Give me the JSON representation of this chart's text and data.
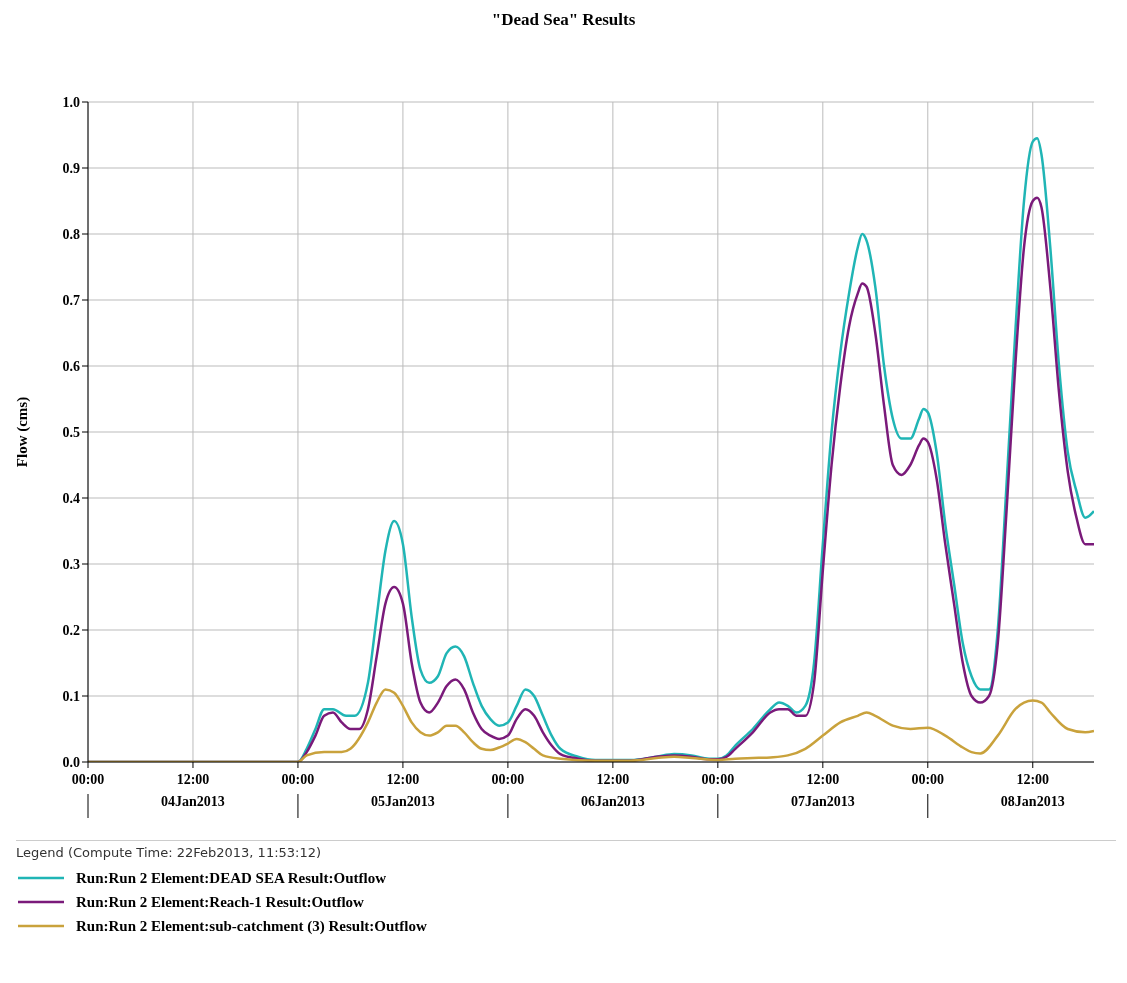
{
  "chart_data": {
    "type": "line",
    "title": "\"Dead Sea\" Results",
    "ylabel": "Flow (cms)",
    "legend_title": "Legend (Compute Time: 22Feb2013, 11:53:12)",
    "legend": "bottom",
    "grid": true,
    "marker": "none",
    "line_style": "solid",
    "xlim": [
      "2013-01-04T00:00",
      "2013-01-08T19:00"
    ],
    "xticks": [
      {
        "value": "2013-01-04T00:00",
        "label": "00:00"
      },
      {
        "value": "2013-01-04T12:00",
        "label": "12:00\n04Jan2013"
      },
      {
        "value": "2013-01-05T00:00",
        "label": "00:00"
      },
      {
        "value": "2013-01-05T12:00",
        "label": "12:00\n05Jan2013"
      },
      {
        "value": "2013-01-06T00:00",
        "label": "00:00"
      },
      {
        "value": "2013-01-06T12:00",
        "label": "12:00\n06Jan2013"
      },
      {
        "value": "2013-01-07T00:00",
        "label": "00:00"
      },
      {
        "value": "2013-01-07T12:00",
        "label": "12:00\n07Jan2013"
      },
      {
        "value": "2013-01-08T00:00",
        "label": "00:00"
      },
      {
        "value": "2013-01-08T12:00",
        "label": "12:00\n08Jan2013"
      }
    ],
    "ylim": [
      0,
      1
    ],
    "yticks": [
      {
        "value": 0,
        "label": "0.0"
      },
      {
        "value": 0.1,
        "label": "0.1"
      },
      {
        "value": 0.2,
        "label": "0.2"
      },
      {
        "value": 0.3,
        "label": "0.3"
      },
      {
        "value": 0.4,
        "label": "0.4"
      },
      {
        "value": 0.5,
        "label": "0.5"
      },
      {
        "value": 0.6,
        "label": "0.6"
      },
      {
        "value": 0.7,
        "label": "0.7"
      },
      {
        "value": 0.8,
        "label": "0.8"
      },
      {
        "value": 0.9,
        "label": "0.9"
      },
      {
        "value": 1,
        "label": "1.0"
      }
    ],
    "series": [
      {
        "name": "Run:Run 2 Element:DEAD SEA Result:Outflow",
        "color": "#20b5b5",
        "x": [
          "2013-01-04T00:00",
          "2013-01-05T00:00",
          "2013-01-05T01:00",
          "2013-01-05T02:00",
          "2013-01-05T03:00",
          "2013-01-05T04:00",
          "2013-01-05T05:30",
          "2013-01-05T06:30",
          "2013-01-05T08:00",
          "2013-01-05T09:00",
          "2013-01-05T10:00",
          "2013-01-05T11:00",
          "2013-01-05T12:00",
          "2013-01-05T13:00",
          "2013-01-05T14:00",
          "2013-01-05T15:00",
          "2013-01-05T16:00",
          "2013-01-05T17:00",
          "2013-01-05T18:00",
          "2013-01-05T19:00",
          "2013-01-05T20:00",
          "2013-01-05T21:00",
          "2013-01-05T22:00",
          "2013-01-05T23:00",
          "2013-01-06T00:00",
          "2013-01-06T01:00",
          "2013-01-06T02:00",
          "2013-01-06T03:00",
          "2013-01-06T04:00",
          "2013-01-06T05:00",
          "2013-01-06T06:00",
          "2013-01-06T08:00",
          "2013-01-06T10:00",
          "2013-01-06T14:00",
          "2013-01-06T17:00",
          "2013-01-06T19:00",
          "2013-01-06T21:00",
          "2013-01-06T23:00",
          "2013-01-07T00:00",
          "2013-01-07T01:00",
          "2013-01-07T02:00",
          "2013-01-07T04:00",
          "2013-01-07T06:00",
          "2013-01-07T07:00",
          "2013-01-07T08:00",
          "2013-01-07T09:00",
          "2013-01-07T10:00",
          "2013-01-07T11:00",
          "2013-01-07T12:00",
          "2013-01-07T13:00",
          "2013-01-07T14:00",
          "2013-01-07T15:00",
          "2013-01-07T16:00",
          "2013-01-07T16:30",
          "2013-01-07T17:00",
          "2013-01-07T18:00",
          "2013-01-07T19:00",
          "2013-01-07T20:00",
          "2013-01-07T21:00",
          "2013-01-07T22:00",
          "2013-01-07T23:00",
          "2013-01-07T23:30",
          "2013-01-08T00:00",
          "2013-01-08T01:00",
          "2013-01-08T02:00",
          "2013-01-08T03:00",
          "2013-01-08T04:00",
          "2013-01-08T05:00",
          "2013-01-08T06:00",
          "2013-01-08T07:00",
          "2013-01-08T08:00",
          "2013-01-08T09:00",
          "2013-01-08T10:00",
          "2013-01-08T11:00",
          "2013-01-08T12:00",
          "2013-01-08T12:30",
          "2013-01-08T13:00",
          "2013-01-08T14:00",
          "2013-01-08T15:00",
          "2013-01-08T16:00",
          "2013-01-08T17:00",
          "2013-01-08T18:00",
          "2013-01-08T19:00"
        ],
        "values": [
          0,
          0,
          0.02,
          0.05,
          0.08,
          0.08,
          0.07,
          0.07,
          0.12,
          0.22,
          0.32,
          0.365,
          0.33,
          0.22,
          0.14,
          0.12,
          0.13,
          0.165,
          0.175,
          0.16,
          0.12,
          0.085,
          0.065,
          0.055,
          0.06,
          0.085,
          0.11,
          0.1,
          0.07,
          0.04,
          0.02,
          0.008,
          0.003,
          0.003,
          0.008,
          0.012,
          0.01,
          0.005,
          0.005,
          0.01,
          0.025,
          0.05,
          0.08,
          0.09,
          0.085,
          0.075,
          0.085,
          0.15,
          0.33,
          0.5,
          0.62,
          0.71,
          0.78,
          0.8,
          0.79,
          0.72,
          0.6,
          0.52,
          0.49,
          0.49,
          0.52,
          0.535,
          0.53,
          0.47,
          0.36,
          0.27,
          0.18,
          0.13,
          0.11,
          0.11,
          0.2,
          0.42,
          0.65,
          0.85,
          0.94,
          0.945,
          0.92,
          0.78,
          0.6,
          0.47,
          0.41,
          0.37,
          0.38
        ]
      },
      {
        "name": "Run:Run 2 Element:Reach-1 Result:Outflow",
        "color": "#7a1a7a",
        "x": [
          "2013-01-04T00:00",
          "2013-01-05T00:00",
          "2013-01-05T01:00",
          "2013-01-05T02:00",
          "2013-01-05T03:00",
          "2013-01-05T04:00",
          "2013-01-05T05:00",
          "2013-01-05T06:00",
          "2013-01-05T07:00",
          "2013-01-05T08:00",
          "2013-01-05T09:00",
          "2013-01-05T10:00",
          "2013-01-05T11:00",
          "2013-01-05T12:00",
          "2013-01-05T13:00",
          "2013-01-05T14:00",
          "2013-01-05T15:00",
          "2013-01-05T16:00",
          "2013-01-05T17:00",
          "2013-01-05T18:00",
          "2013-01-05T19:00",
          "2013-01-05T20:00",
          "2013-01-05T21:00",
          "2013-01-05T22:00",
          "2013-01-05T23:00",
          "2013-01-06T00:00",
          "2013-01-06T01:00",
          "2013-01-06T02:00",
          "2013-01-06T03:00",
          "2013-01-06T04:00",
          "2013-01-06T05:00",
          "2013-01-06T06:00",
          "2013-01-06T08:00",
          "2013-01-06T10:00",
          "2013-01-06T14:00",
          "2013-01-06T17:00",
          "2013-01-06T19:00",
          "2013-01-06T21:00",
          "2013-01-06T23:00",
          "2013-01-07T00:00",
          "2013-01-07T01:00",
          "2013-01-07T02:00",
          "2013-01-07T04:00",
          "2013-01-07T06:00",
          "2013-01-07T07:00",
          "2013-01-07T08:00",
          "2013-01-07T09:00",
          "2013-01-07T10:00",
          "2013-01-07T11:00",
          "2013-01-07T12:00",
          "2013-01-07T13:00",
          "2013-01-07T14:00",
          "2013-01-07T15:00",
          "2013-01-07T16:00",
          "2013-01-07T16:30",
          "2013-01-07T17:00",
          "2013-01-07T18:00",
          "2013-01-07T19:00",
          "2013-01-07T20:00",
          "2013-01-07T21:00",
          "2013-01-07T22:00",
          "2013-01-07T23:00",
          "2013-01-07T23:30",
          "2013-01-08T00:00",
          "2013-01-08T01:00",
          "2013-01-08T02:00",
          "2013-01-08T03:00",
          "2013-01-08T04:00",
          "2013-01-08T05:00",
          "2013-01-08T06:00",
          "2013-01-08T07:00",
          "2013-01-08T08:00",
          "2013-01-08T09:00",
          "2013-01-08T10:00",
          "2013-01-08T11:00",
          "2013-01-08T12:00",
          "2013-01-08T12:30",
          "2013-01-08T13:00",
          "2013-01-08T14:00",
          "2013-01-08T15:00",
          "2013-01-08T16:00",
          "2013-01-08T17:00",
          "2013-01-08T18:00",
          "2013-01-08T19:00"
        ],
        "values": [
          0,
          0,
          0.015,
          0.04,
          0.07,
          0.075,
          0.06,
          0.05,
          0.05,
          0.08,
          0.16,
          0.24,
          0.265,
          0.24,
          0.15,
          0.09,
          0.075,
          0.09,
          0.115,
          0.125,
          0.11,
          0.075,
          0.05,
          0.04,
          0.035,
          0.04,
          0.065,
          0.08,
          0.07,
          0.045,
          0.025,
          0.012,
          0.005,
          0.002,
          0.002,
          0.008,
          0.01,
          0.008,
          0.004,
          0.004,
          0.008,
          0.02,
          0.045,
          0.075,
          0.08,
          0.08,
          0.07,
          0.07,
          0.12,
          0.29,
          0.45,
          0.57,
          0.66,
          0.71,
          0.725,
          0.72,
          0.65,
          0.54,
          0.45,
          0.435,
          0.45,
          0.48,
          0.49,
          0.485,
          0.43,
          0.33,
          0.24,
          0.15,
          0.1,
          0.09,
          0.1,
          0.18,
          0.38,
          0.6,
          0.78,
          0.85,
          0.855,
          0.84,
          0.72,
          0.56,
          0.44,
          0.37,
          0.33,
          0.33
        ]
      },
      {
        "name": "Run:Run 2 Element:sub-catchment (3) Result:Outflow",
        "color": "#c9a23c",
        "x": [
          "2013-01-04T00:00",
          "2013-01-05T00:00",
          "2013-01-05T01:00",
          "2013-01-05T03:00",
          "2013-01-05T05:00",
          "2013-01-05T06:00",
          "2013-01-05T08:00",
          "2013-01-05T09:00",
          "2013-01-05T10:00",
          "2013-01-05T11:00",
          "2013-01-05T12:00",
          "2013-01-05T13:00",
          "2013-01-05T14:00",
          "2013-01-05T15:00",
          "2013-01-05T16:00",
          "2013-01-05T17:00",
          "2013-01-05T18:00",
          "2013-01-05T19:00",
          "2013-01-05T20:00",
          "2013-01-05T21:00",
          "2013-01-05T22:00",
          "2013-01-05T23:00",
          "2013-01-06T00:00",
          "2013-01-06T01:00",
          "2013-01-06T02:00",
          "2013-01-06T03:00",
          "2013-01-06T04:00",
          "2013-01-06T06:00",
          "2013-01-06T10:00",
          "2013-01-06T14:00",
          "2013-01-06T17:00",
          "2013-01-06T19:00",
          "2013-01-06T21:00",
          "2013-01-07T00:00",
          "2013-01-07T02:00",
          "2013-01-07T04:00",
          "2013-01-07T06:00",
          "2013-01-07T08:00",
          "2013-01-07T10:00",
          "2013-01-07T12:00",
          "2013-01-07T14:00",
          "2013-01-07T16:00",
          "2013-01-07T17:00",
          "2013-01-07T18:00",
          "2013-01-07T20:00",
          "2013-01-07T22:00",
          "2013-01-08T00:00",
          "2013-01-08T02:00",
          "2013-01-08T04:00",
          "2013-01-08T05:00",
          "2013-01-08T06:00",
          "2013-01-08T08:00",
          "2013-01-08T10:00",
          "2013-01-08T11:00",
          "2013-01-08T12:00",
          "2013-01-08T13:00",
          "2013-01-08T14:00",
          "2013-01-08T16:00",
          "2013-01-08T18:00",
          "2013-01-08T19:00"
        ],
        "values": [
          0,
          0,
          0.01,
          0.015,
          0.015,
          0.02,
          0.06,
          0.09,
          0.11,
          0.105,
          0.085,
          0.06,
          0.045,
          0.04,
          0.045,
          0.055,
          0.055,
          0.045,
          0.03,
          0.02,
          0.018,
          0.022,
          0.028,
          0.035,
          0.03,
          0.02,
          0.01,
          0.005,
          0.002,
          0.002,
          0.006,
          0.008,
          0.006,
          0.003,
          0.005,
          0.006,
          0.007,
          0.01,
          0.02,
          0.04,
          0.06,
          0.07,
          0.075,
          0.07,
          0.055,
          0.05,
          0.052,
          0.04,
          0.022,
          0.015,
          0.013,
          0.04,
          0.08,
          0.09,
          0.093,
          0.09,
          0.075,
          0.05,
          0.045,
          0.047
        ]
      }
    ]
  }
}
